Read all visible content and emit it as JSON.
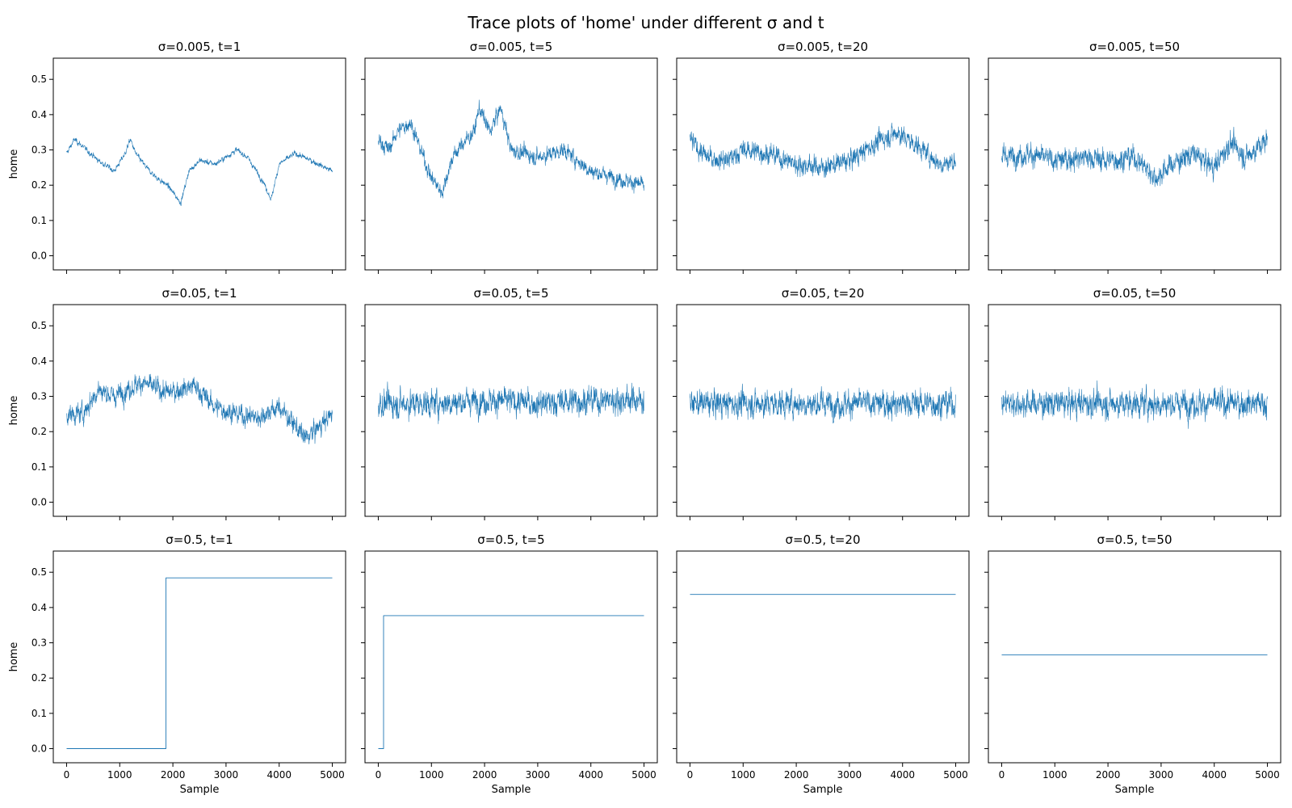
{
  "figure": {
    "title": "Trace plots of 'home' under different σ and t"
  },
  "chart_data": {
    "type": "line",
    "layout": "3x4 grid of trace plots, shared x and y axes",
    "color": "#1f77b4",
    "xlabel": "Sample",
    "ylabel": "home",
    "xlim": [
      -250,
      5250
    ],
    "ylim": [
      -0.04,
      0.56
    ],
    "xticks": [
      0,
      1000,
      2000,
      3000,
      4000,
      5000
    ],
    "yticks": [
      0.0,
      0.1,
      0.2,
      0.3,
      0.4,
      0.5
    ],
    "n_samples": 5000,
    "grid": false,
    "legend": "none",
    "panels": [
      {
        "title": "σ=0.005, t=1",
        "sigma": 0.005,
        "t": 1,
        "kind": "trace",
        "path": [
          [
            0,
            0.29
          ],
          [
            150,
            0.33
          ],
          [
            300,
            0.31
          ],
          [
            600,
            0.27
          ],
          [
            900,
            0.24
          ],
          [
            1100,
            0.29
          ],
          [
            1200,
            0.33
          ],
          [
            1300,
            0.29
          ],
          [
            1500,
            0.25
          ],
          [
            1700,
            0.22
          ],
          [
            1900,
            0.2
          ],
          [
            2150,
            0.15
          ],
          [
            2300,
            0.24
          ],
          [
            2500,
            0.27
          ],
          [
            2800,
            0.26
          ],
          [
            3200,
            0.3
          ],
          [
            3400,
            0.28
          ],
          [
            3700,
            0.21
          ],
          [
            3850,
            0.16
          ],
          [
            4000,
            0.26
          ],
          [
            4300,
            0.29
          ],
          [
            4600,
            0.27
          ],
          [
            5000,
            0.24
          ]
        ],
        "spread": 0.012
      },
      {
        "title": "σ=0.005, t=5",
        "sigma": 0.005,
        "t": 5,
        "kind": "trace",
        "path": [
          [
            0,
            0.33
          ],
          [
            200,
            0.3
          ],
          [
            350,
            0.35
          ],
          [
            600,
            0.38
          ],
          [
            800,
            0.3
          ],
          [
            1000,
            0.22
          ],
          [
            1200,
            0.18
          ],
          [
            1400,
            0.28
          ],
          [
            1600,
            0.32
          ],
          [
            1800,
            0.35
          ],
          [
            1900,
            0.42
          ],
          [
            2100,
            0.35
          ],
          [
            2300,
            0.42
          ],
          [
            2500,
            0.3
          ],
          [
            3000,
            0.28
          ],
          [
            3500,
            0.3
          ],
          [
            4000,
            0.24
          ],
          [
            4500,
            0.22
          ],
          [
            5000,
            0.2
          ]
        ],
        "spread": 0.035
      },
      {
        "title": "σ=0.005, t=20",
        "sigma": 0.005,
        "t": 20,
        "kind": "trace",
        "path": [
          [
            0,
            0.33
          ],
          [
            300,
            0.28
          ],
          [
            700,
            0.27
          ],
          [
            1000,
            0.3
          ],
          [
            1500,
            0.29
          ],
          [
            2000,
            0.26
          ],
          [
            2500,
            0.25
          ],
          [
            3000,
            0.27
          ],
          [
            3300,
            0.3
          ],
          [
            3600,
            0.33
          ],
          [
            3900,
            0.35
          ],
          [
            4300,
            0.31
          ],
          [
            4700,
            0.26
          ],
          [
            5000,
            0.27
          ]
        ],
        "spread": 0.045
      },
      {
        "title": "σ=0.005, t=50",
        "sigma": 0.005,
        "t": 50,
        "kind": "trace",
        "path": [
          [
            0,
            0.28
          ],
          [
            500,
            0.29
          ],
          [
            1000,
            0.27
          ],
          [
            1500,
            0.28
          ],
          [
            2000,
            0.27
          ],
          [
            2500,
            0.28
          ],
          [
            2900,
            0.22
          ],
          [
            3200,
            0.26
          ],
          [
            3600,
            0.29
          ],
          [
            4000,
            0.25
          ],
          [
            4300,
            0.32
          ],
          [
            4600,
            0.28
          ],
          [
            5000,
            0.33
          ]
        ],
        "spread": 0.05
      },
      {
        "title": "σ=0.05, t=1",
        "sigma": 0.05,
        "t": 1,
        "kind": "trace",
        "path": [
          [
            0,
            0.25
          ],
          [
            300,
            0.25
          ],
          [
            600,
            0.32
          ],
          [
            900,
            0.3
          ],
          [
            1400,
            0.34
          ],
          [
            1900,
            0.31
          ],
          [
            2400,
            0.33
          ],
          [
            2800,
            0.27
          ],
          [
            3200,
            0.25
          ],
          [
            3600,
            0.24
          ],
          [
            4000,
            0.27
          ],
          [
            4500,
            0.18
          ],
          [
            5000,
            0.25
          ]
        ],
        "spread": 0.045
      },
      {
        "title": "σ=0.05, t=5",
        "sigma": 0.05,
        "t": 5,
        "kind": "trace",
        "path": [
          [
            0,
            0.28
          ],
          [
            1000,
            0.28
          ],
          [
            2000,
            0.29
          ],
          [
            3000,
            0.28
          ],
          [
            4000,
            0.29
          ],
          [
            5000,
            0.29
          ]
        ],
        "spread": 0.06
      },
      {
        "title": "σ=0.05, t=20",
        "sigma": 0.05,
        "t": 20,
        "kind": "trace",
        "path": [
          [
            0,
            0.28
          ],
          [
            2500,
            0.28
          ],
          [
            5000,
            0.28
          ]
        ],
        "spread": 0.06
      },
      {
        "title": "σ=0.05, t=50",
        "sigma": 0.05,
        "t": 50,
        "kind": "trace",
        "path": [
          [
            0,
            0.28
          ],
          [
            2500,
            0.28
          ],
          [
            5000,
            0.28
          ]
        ],
        "spread": 0.06
      },
      {
        "title": "σ=0.5, t=1",
        "sigma": 0.5,
        "t": 1,
        "kind": "step",
        "path": [
          [
            0,
            0.0
          ],
          [
            1870,
            0.0
          ],
          [
            1870,
            0.484
          ],
          [
            5000,
            0.484
          ]
        ]
      },
      {
        "title": "σ=0.5, t=5",
        "sigma": 0.5,
        "t": 5,
        "kind": "step",
        "path": [
          [
            0,
            0.0
          ],
          [
            100,
            0.0
          ],
          [
            100,
            0.377
          ],
          [
            5000,
            0.377
          ]
        ]
      },
      {
        "title": "σ=0.5, t=20",
        "sigma": 0.5,
        "t": 20,
        "kind": "step",
        "path": [
          [
            0,
            0.437
          ],
          [
            5000,
            0.437
          ]
        ]
      },
      {
        "title": "σ=0.5, t=50",
        "sigma": 0.5,
        "t": 50,
        "kind": "step",
        "path": [
          [
            0,
            0.266
          ],
          [
            5000,
            0.266
          ]
        ]
      }
    ]
  }
}
